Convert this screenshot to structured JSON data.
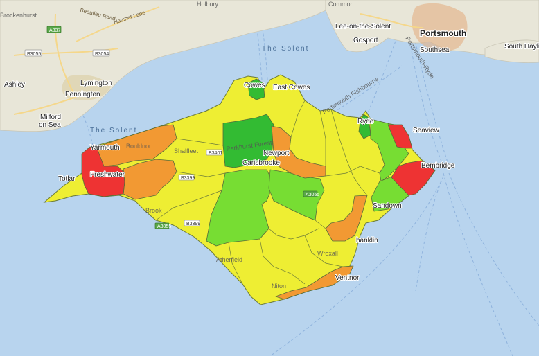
{
  "sea_labels": {
    "solent_east": "The Solent",
    "solent_west": "The Solent"
  },
  "places": {
    "holbury": "Holbury",
    "common": "Common",
    "brockenhurst": "Brockenhurst",
    "beaulieu_road": "Beaulieu Road",
    "hatchet_lane": "Hatchet Lane",
    "lee_on_the_solent": "Lee-on-the-Solent",
    "gosport": "Gosport",
    "portsmouth": "Portsmouth",
    "southsea": "Southsea",
    "south_hayling": "South Haylin",
    "ashley": "Ashley",
    "lymington": "Lymington",
    "pennington": "Pennington",
    "milford_on_sea": "Milford\non Sea",
    "cowes": "Cowes",
    "east_cowes": "East Cowes",
    "ryde": "Ryde",
    "seaview": "Seaview",
    "bembridge": "Bembridge",
    "yarmouth": "Yarmouth",
    "bouldnor": "Bouldnor",
    "shalfleet": "Shalfleet",
    "newport": "Newport",
    "carisbrooke": "Carisbrooke",
    "parkhurst_forest": "Parkhurst Forest",
    "totland": "Totlar",
    "freshwater": "Freshwater",
    "brook": "Brook",
    "sandown": "Sandown",
    "shanklin": "hanklin",
    "wroxall": "Wroxall",
    "atherfield": "Atherfield",
    "niton": "Niton",
    "ventnor": "Ventnor"
  },
  "roads": {
    "a337": "A337",
    "b3055": "B3055",
    "b3054": "B3054",
    "b3401": "B3401",
    "b3399": "B3399",
    "a3055": "A3055"
  },
  "channel_labels": {
    "portsmouth_fishbourne": "Portsmouth Fishbourne",
    "portsmouth_ryde": "Portsmouth-Ryde"
  },
  "legend_colors": {
    "dark_green": "#33bb33",
    "green": "#77dd33",
    "yellow": "#eeee33",
    "orange": "#f29933",
    "red": "#ee3333"
  },
  "zones": [
    {
      "id": "cowes",
      "level": "dark_green"
    },
    {
      "id": "parkhurst",
      "level": "dark_green"
    },
    {
      "id": "ryde",
      "level": "dark_green"
    },
    {
      "id": "carisbrooke",
      "level": "green"
    },
    {
      "id": "central",
      "level": "green"
    },
    {
      "id": "north-east",
      "level": "green"
    },
    {
      "id": "sandown",
      "level": "green"
    },
    {
      "id": "yarmouth",
      "level": "orange"
    },
    {
      "id": "brook-north",
      "level": "orange"
    },
    {
      "id": "newport",
      "level": "orange"
    },
    {
      "id": "shanklin",
      "level": "orange"
    },
    {
      "id": "ventnor",
      "level": "orange"
    },
    {
      "id": "freshwater",
      "level": "red"
    },
    {
      "id": "seaview",
      "level": "red"
    },
    {
      "id": "bembridge",
      "level": "red"
    }
  ]
}
